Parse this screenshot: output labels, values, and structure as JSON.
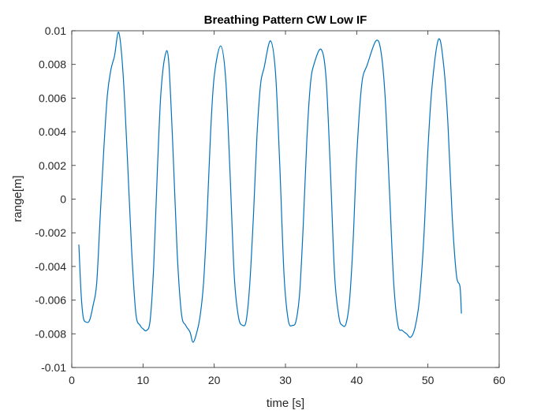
{
  "chart_data": {
    "type": "line",
    "title": "Breathing Pattern CW Low IF",
    "xlabel": "time [s]",
    "ylabel": "range[m]",
    "xlim": [
      0,
      60
    ],
    "ylim": [
      -0.01,
      0.01
    ],
    "xticks": [
      0,
      10,
      20,
      30,
      40,
      50,
      60
    ],
    "xtick_labels": [
      "0",
      "10",
      "20",
      "30",
      "40",
      "50",
      "60"
    ],
    "yticks": [
      -0.01,
      -0.008,
      -0.006,
      -0.004,
      -0.002,
      0,
      0.002,
      0.004,
      0.006,
      0.008,
      0.01
    ],
    "ytick_labels": [
      "-0.01",
      "-0.008",
      "-0.006",
      "-0.004",
      "-0.002",
      "0",
      "0.002",
      "0.004",
      "0.006",
      "0.008",
      "0.01"
    ],
    "grid": false,
    "line_color": "#0072BD",
    "series": [
      {
        "x": [
          1.0,
          1.3,
          1.6,
          2.0,
          2.5,
          3.0,
          3.5,
          4.0,
          4.5,
          5.0,
          5.5,
          6.0,
          6.6,
          7.2,
          7.8,
          8.4,
          9.0,
          9.6,
          10.0,
          10.5,
          11.0,
          11.5,
          12.0,
          12.5,
          13.1,
          13.6,
          14.2,
          14.8,
          15.4,
          16.0,
          16.6,
          17.0,
          17.5,
          18.0,
          18.5,
          19.0,
          19.5,
          20.0,
          20.9,
          21.6,
          22.2,
          22.8,
          23.4,
          24.0,
          24.5,
          25.0,
          25.5,
          26.0,
          26.5,
          27.0,
          27.9,
          28.6,
          29.2,
          29.8,
          30.4,
          31.0,
          31.5,
          32.0,
          32.5,
          33.0,
          33.5,
          34.0,
          35.0,
          35.7,
          36.3,
          36.9,
          37.5,
          38.0,
          38.5,
          39.0,
          39.5,
          40.0,
          40.7,
          41.5,
          42.7,
          43.4,
          44.0,
          44.6,
          45.2,
          45.8,
          46.4,
          47.0,
          47.6,
          48.2,
          48.8,
          49.4,
          50.0,
          50.6,
          51.5,
          52.2,
          52.8,
          53.4,
          54.0,
          54.5,
          54.7
        ],
        "y": [
          -0.0027,
          -0.0055,
          -0.007,
          -0.0073,
          -0.0072,
          -0.0063,
          -0.005,
          -0.001,
          0.003,
          0.0062,
          0.0077,
          0.0085,
          0.0099,
          0.0075,
          0.0025,
          -0.003,
          -0.0068,
          -0.0075,
          -0.0077,
          -0.0078,
          -0.0072,
          -0.004,
          0.0015,
          0.0062,
          0.0085,
          0.0082,
          0.003,
          -0.0032,
          -0.0068,
          -0.0075,
          -0.0079,
          -0.0085,
          -0.008,
          -0.007,
          -0.005,
          -0.001,
          0.004,
          0.0073,
          0.0091,
          0.0072,
          0.0018,
          -0.0045,
          -0.007,
          -0.0075,
          -0.0072,
          -0.005,
          -0.001,
          0.0038,
          0.0068,
          0.0078,
          0.0094,
          0.0075,
          0.002,
          -0.0045,
          -0.0072,
          -0.0075,
          -0.0072,
          -0.0055,
          -0.0015,
          0.0035,
          0.0068,
          0.008,
          0.0089,
          0.0072,
          0.0018,
          -0.0045,
          -0.007,
          -0.0075,
          -0.0074,
          -0.006,
          -0.0025,
          0.0025,
          0.0068,
          0.008,
          0.0094,
          0.0088,
          0.006,
          0.0005,
          -0.005,
          -0.0075,
          -0.0078,
          -0.008,
          -0.0082,
          -0.0076,
          -0.006,
          -0.0025,
          0.003,
          0.0068,
          0.0095,
          0.008,
          0.0045,
          -0.001,
          -0.0045,
          -0.0052,
          -0.0068
        ]
      }
    ]
  }
}
